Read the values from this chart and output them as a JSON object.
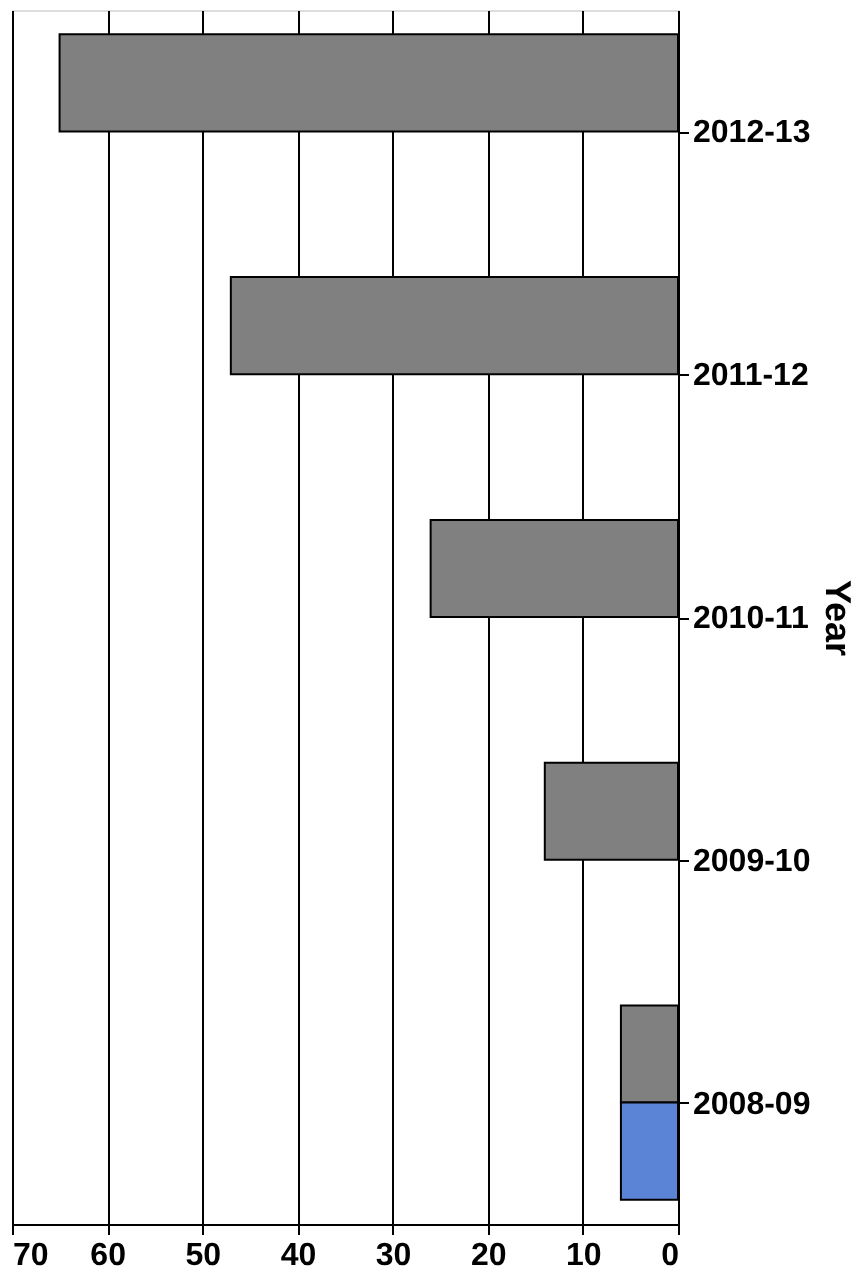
{
  "chart_data": {
    "type": "bar",
    "orientation": "horizontal",
    "ylabel": "Year",
    "categories": [
      "2012-13",
      "2011-12",
      "2010-11",
      "2009-10",
      "2008-09"
    ],
    "series": [
      {
        "color": "#808080",
        "values": [
          65,
          47,
          26,
          14,
          6
        ]
      },
      {
        "color": "#5b84d6",
        "values": [
          null,
          null,
          null,
          null,
          6
        ]
      }
    ],
    "xlim": [
      70,
      0
    ],
    "xticks": [
      0,
      10,
      20,
      30,
      40,
      50,
      60,
      70
    ],
    "grid": "x"
  }
}
